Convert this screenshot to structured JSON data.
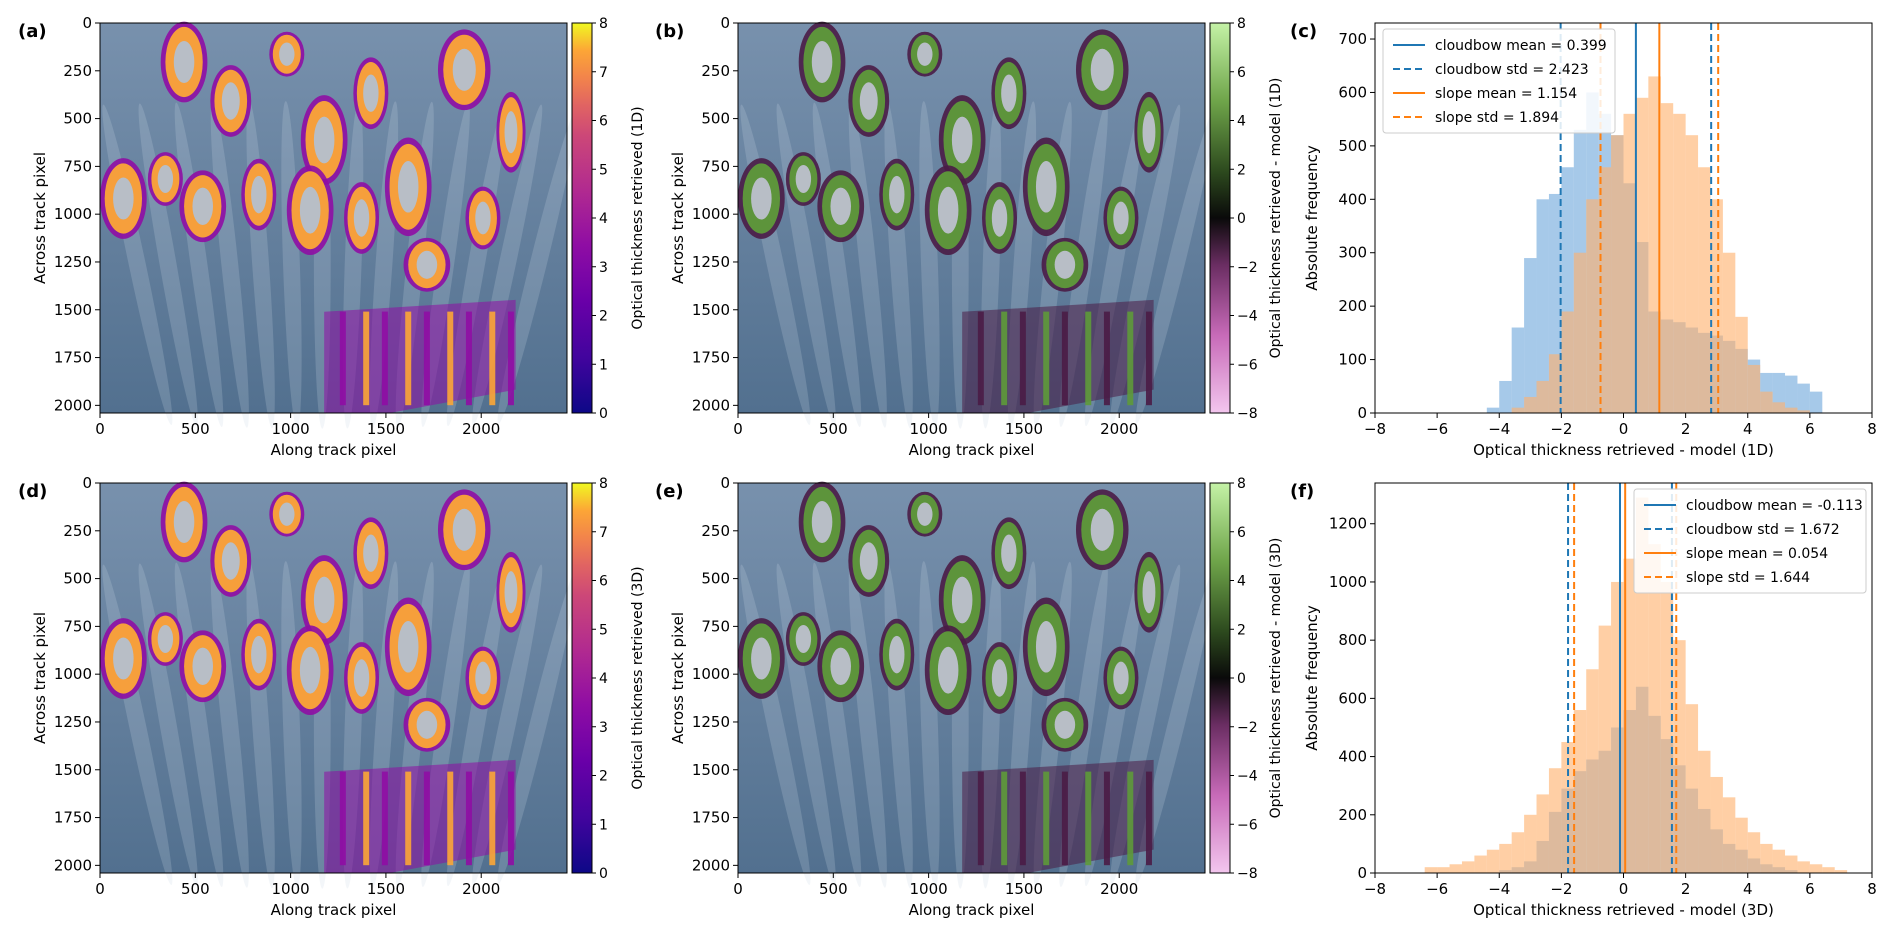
{
  "figure": {
    "panels": [
      {
        "id": "a",
        "label": "(a)",
        "kind": "map",
        "colormap": "plasma",
        "cbar_label": "Optical thickness retrieved (1D)",
        "cbar_range": [
          0,
          8
        ],
        "cbar_ticks": [
          "0",
          "1",
          "2",
          "3",
          "4",
          "5",
          "6",
          "7",
          "8"
        ]
      },
      {
        "id": "b",
        "label": "(b)",
        "kind": "map",
        "colormap": "pinkgreen",
        "cbar_label": "Optical thickness retrieved - model (1D)",
        "cbar_range": [
          -8,
          8
        ],
        "cbar_ticks": [
          "−8",
          "−6",
          "−4",
          "−2",
          "0",
          "2",
          "4",
          "6",
          "8"
        ]
      },
      {
        "id": "c",
        "label": "(c)",
        "kind": "hist"
      },
      {
        "id": "d",
        "label": "(d)",
        "kind": "map",
        "colormap": "plasma",
        "cbar_label": "Optical thickness retrieved (3D)",
        "cbar_range": [
          0,
          8
        ],
        "cbar_ticks": [
          "0",
          "1",
          "2",
          "3",
          "4",
          "5",
          "6",
          "7",
          "8"
        ]
      },
      {
        "id": "e",
        "label": "(e)",
        "kind": "map",
        "colormap": "pinkgreen",
        "cbar_label": "Optical thickness retrieved - model (3D)",
        "cbar_range": [
          -8,
          8
        ],
        "cbar_ticks": [
          "−8",
          "−6",
          "−4",
          "−2",
          "0",
          "2",
          "4",
          "6",
          "8"
        ]
      },
      {
        "id": "f",
        "label": "(f)",
        "kind": "hist"
      }
    ],
    "map_axes": {
      "xlabel": "Along track pixel",
      "ylabel": "Across track pixel",
      "x_range": [
        0,
        2450
      ],
      "y_range": [
        0,
        2040
      ],
      "x_ticks": [
        "0",
        "500",
        "1000",
        "1500",
        "2000"
      ],
      "y_ticks": [
        "0",
        "250",
        "500",
        "750",
        "1000",
        "1250",
        "1500",
        "1750",
        "2000"
      ]
    },
    "colors": {
      "cloudbow": "#1f77b4",
      "slope": "#ff7f0e",
      "cloudbow_fill": "#6fa8dc",
      "slope_fill": "#ffb26e",
      "overlap_fill": "#7d9aa6",
      "sky_top": "#6f8aa8",
      "sky_bottom": "#53708f"
    }
  },
  "chart_data": [
    {
      "panel": "(c)",
      "type": "bar",
      "subtype": "histogram",
      "xlabel": "Optical thickness retrieved - model (1D)",
      "ylabel": "Absolute frequency",
      "xlim": [
        -8,
        8
      ],
      "ylim": [
        0,
        730
      ],
      "x_ticks": [
        "−8",
        "−6",
        "−4",
        "−2",
        "0",
        "2",
        "4",
        "6",
        "8"
      ],
      "y_ticks": [
        "0",
        "100",
        "200",
        "300",
        "400",
        "500",
        "600",
        "700"
      ],
      "bin_width": 0.4,
      "series": [
        {
          "name": "cloudbow",
          "bin_start": -4.4,
          "values": [
            10,
            60,
            160,
            290,
            400,
            410,
            460,
            530,
            600,
            560,
            520,
            430,
            320,
            190,
            175,
            170,
            160,
            150,
            145,
            135,
            120,
            100,
            75,
            75,
            70,
            55,
            40,
            0
          ]
        },
        {
          "name": "slope",
          "bin_start": -4.4,
          "values": [
            0,
            0,
            10,
            30,
            60,
            110,
            190,
            300,
            400,
            460,
            520,
            560,
            590,
            630,
            580,
            560,
            520,
            460,
            400,
            300,
            180,
            90,
            40,
            20,
            10,
            5,
            0,
            0
          ]
        }
      ],
      "lines": [
        {
          "series": "cloudbow",
          "stat": "mean",
          "value": 0.399
        },
        {
          "series": "cloudbow",
          "stat": "std-",
          "value": -2.024
        },
        {
          "series": "cloudbow",
          "stat": "std+",
          "value": 2.822
        },
        {
          "series": "slope",
          "stat": "mean",
          "value": 1.154
        },
        {
          "series": "slope",
          "stat": "std-",
          "value": -0.74
        },
        {
          "series": "slope",
          "stat": "std+",
          "value": 3.048
        }
      ],
      "legend": {
        "position": "top-left",
        "entries": [
          {
            "label": "cloudbow mean = 0.399",
            "series": "cloudbow",
            "dashed": false
          },
          {
            "label": "cloudbow std = 2.423",
            "series": "cloudbow",
            "dashed": true
          },
          {
            "label": "slope mean = 1.154",
            "series": "slope",
            "dashed": false
          },
          {
            "label": "slope std = 1.894",
            "series": "slope",
            "dashed": true
          }
        ]
      }
    },
    {
      "panel": "(f)",
      "type": "bar",
      "subtype": "histogram",
      "xlabel": "Optical thickness retrieved - model (3D)",
      "ylabel": "Absolute frequency",
      "xlim": [
        -8,
        8
      ],
      "ylim": [
        0,
        1340
      ],
      "x_ticks": [
        "−8",
        "−6",
        "−4",
        "−2",
        "0",
        "2",
        "4",
        "6",
        "8"
      ],
      "y_ticks": [
        "0",
        "200",
        "400",
        "600",
        "800",
        "1000",
        "1200"
      ],
      "bin_width": 0.4,
      "series": [
        {
          "name": "cloudbow",
          "bin_start": -4.0,
          "values": [
            10,
            20,
            40,
            110,
            210,
            290,
            350,
            390,
            420,
            500,
            560,
            640,
            540,
            460,
            370,
            290,
            220,
            150,
            100,
            80,
            50,
            30,
            20,
            10
          ]
        },
        {
          "name": "slope",
          "bin_start": -6.4,
          "values": [
            20,
            20,
            30,
            40,
            60,
            80,
            100,
            140,
            200,
            270,
            360,
            450,
            560,
            700,
            850,
            1000,
            1080,
            1290,
            1130,
            1000,
            800,
            580,
            420,
            330,
            260,
            190,
            140,
            100,
            80,
            60,
            40,
            30,
            20,
            10
          ]
        }
      ],
      "lines": [
        {
          "series": "cloudbow",
          "stat": "mean",
          "value": -0.113
        },
        {
          "series": "cloudbow",
          "stat": "std-",
          "value": -1.785
        },
        {
          "series": "cloudbow",
          "stat": "std+",
          "value": 1.559
        },
        {
          "series": "slope",
          "stat": "mean",
          "value": 0.054
        },
        {
          "series": "slope",
          "stat": "std-",
          "value": -1.59
        },
        {
          "series": "slope",
          "stat": "std+",
          "value": 1.698
        }
      ],
      "legend": {
        "position": "top-right",
        "entries": [
          {
            "label": "cloudbow mean = -0.113",
            "series": "cloudbow",
            "dashed": false
          },
          {
            "label": "cloudbow std = 1.672",
            "series": "cloudbow",
            "dashed": true
          },
          {
            "label": "slope mean = 0.054",
            "series": "slope",
            "dashed": false
          },
          {
            "label": "slope std = 1.644",
            "series": "slope",
            "dashed": true
          }
        ]
      }
    }
  ]
}
